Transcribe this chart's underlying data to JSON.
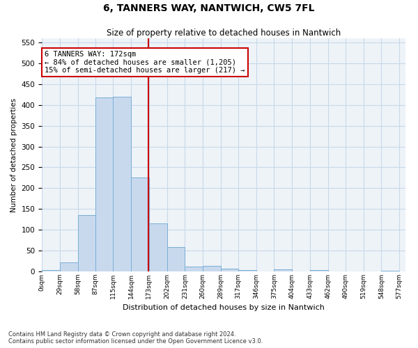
{
  "title": "6, TANNERS WAY, NANTWICH, CW5 7FL",
  "subtitle": "Size of property relative to detached houses in Nantwich",
  "xlabel": "Distribution of detached houses by size in Nantwich",
  "ylabel": "Number of detached properties",
  "bar_color": "#c8d9ee",
  "bar_edge_color": "#7aaed4",
  "grid_color": "#c8d8e8",
  "background_color": "#eef3f8",
  "bin_edges": [
    0,
    29,
    58,
    87,
    115,
    144,
    173,
    202,
    231,
    260,
    289,
    317,
    346,
    375,
    404,
    433,
    462,
    490,
    519,
    548,
    577
  ],
  "bin_labels": [
    "0sqm",
    "29sqm",
    "58sqm",
    "87sqm",
    "115sqm",
    "144sqm",
    "173sqm",
    "202sqm",
    "231sqm",
    "260sqm",
    "289sqm",
    "317sqm",
    "346sqm",
    "375sqm",
    "404sqm",
    "433sqm",
    "462sqm",
    "490sqm",
    "519sqm",
    "548sqm",
    "577sqm"
  ],
  "values": [
    4,
    22,
    136,
    418,
    420,
    226,
    116,
    59,
    11,
    14,
    7,
    4,
    0,
    5,
    0,
    4,
    0,
    0,
    0,
    2
  ],
  "ylim": [
    0,
    560
  ],
  "yticks": [
    0,
    50,
    100,
    150,
    200,
    250,
    300,
    350,
    400,
    450,
    500,
    550
  ],
  "property_line_x": 172,
  "annotation_text": "6 TANNERS WAY: 172sqm\n← 84% of detached houses are smaller (1,205)\n15% of semi-detached houses are larger (217) →",
  "annotation_box_color": "#ffffff",
  "annotation_border_color": "#cc0000",
  "red_line_color": "#cc0000",
  "footer_line1": "Contains HM Land Registry data © Crown copyright and database right 2024.",
  "footer_line2": "Contains public sector information licensed under the Open Government Licence v3.0."
}
